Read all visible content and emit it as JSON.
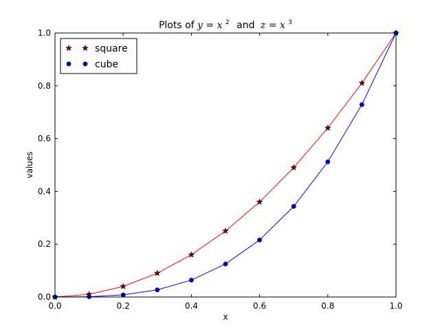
{
  "chart_data": {
    "type": "line",
    "title": {
      "prefix": "Plots of ",
      "expr1_var": "y",
      "expr1_rhs": "x",
      "expr1_exp": "2",
      "joiner": "and",
      "expr2_var": "z",
      "expr2_rhs": "x",
      "expr2_exp": "3"
    },
    "xlabel": "x",
    "ylabel": "values",
    "xlim": [
      0.0,
      1.0
    ],
    "ylim": [
      0.0,
      1.0
    ],
    "x_ticks": [
      "0.0",
      "0.2",
      "0.4",
      "0.6",
      "0.8",
      "1.0"
    ],
    "y_ticks": [
      "0.0",
      "0.2",
      "0.4",
      "0.6",
      "0.8",
      "1.0"
    ],
    "grid": false,
    "legend": "top-left",
    "series": [
      {
        "name": "square",
        "marker": "star",
        "line_color": "#ff0000",
        "marker_color": "#7f0000",
        "x": [
          0.0,
          0.1,
          0.2,
          0.3,
          0.4,
          0.5,
          0.6,
          0.7,
          0.8,
          0.9,
          1.0
        ],
        "y": [
          0.0,
          0.01,
          0.04,
          0.09,
          0.16,
          0.25,
          0.36,
          0.49,
          0.64,
          0.81,
          1.0
        ]
      },
      {
        "name": "cube",
        "marker": "circle",
        "line_color": "#0000ff",
        "marker_color": "#0000cc",
        "x": [
          0.0,
          0.1,
          0.2,
          0.3,
          0.4,
          0.5,
          0.6,
          0.7,
          0.8,
          0.9,
          1.0
        ],
        "y": [
          0.0,
          0.001,
          0.008,
          0.027,
          0.064,
          0.125,
          0.216,
          0.343,
          0.512,
          0.729,
          1.0
        ]
      }
    ]
  }
}
